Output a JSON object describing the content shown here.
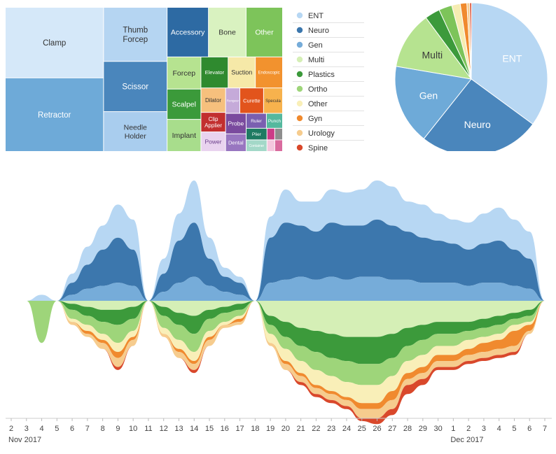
{
  "chart_data": [
    {
      "type": "treemap",
      "items": [
        {
          "name": "Clamp",
          "color": "#d5e8f9",
          "text_color": "#333333",
          "value": 11.5
        },
        {
          "name": "Retractor",
          "color": "#6eaad8",
          "text_color": "#ffffff",
          "value": 12
        },
        {
          "name": "Thumb\nForcep",
          "color": "#b5d5f2",
          "text_color": "#333333",
          "value": 5.7
        },
        {
          "name": "Scissor",
          "color": "#4a86bc",
          "text_color": "#ffffff",
          "value": 5.3
        },
        {
          "name": "Needle\nHolder",
          "color": "#a9cdee",
          "text_color": "#333333",
          "value": 4.2
        },
        {
          "name": "Accessory",
          "color": "#2d6aa3",
          "text_color": "#ffffff",
          "value": 3.4
        },
        {
          "name": "Bone",
          "color": "#d9f2c0",
          "text_color": "#333333",
          "value": 3.1
        },
        {
          "name": "Other",
          "color": "#7dc45a",
          "text_color": "#ffffff",
          "value": 3.0
        },
        {
          "name": "Forcep",
          "color": "#b6e390",
          "text_color": "#333333",
          "value": 1.8
        },
        {
          "name": "Scalpel",
          "color": "#3b9a3a",
          "text_color": "#ffffff",
          "value": 1.7
        },
        {
          "name": "Implant",
          "color": "#a8dd8c",
          "text_color": "#333333",
          "value": 1.8
        },
        {
          "name": "Elevator",
          "color": "#2f8a2f",
          "text_color": "#ffffff",
          "value": 1.4
        },
        {
          "name": "Suction",
          "color": "#f6e9a8",
          "text_color": "#333333",
          "value": 1.4
        },
        {
          "name": "Endoscopic",
          "color": "#f2922e",
          "text_color": "#ffffff",
          "value": 1.4
        },
        {
          "name": "Dilator",
          "color": "#f6c07d",
          "text_color": "#333333",
          "value": 1.0
        },
        {
          "name": "Clip\nApplier",
          "color": "#c22f2f",
          "text_color": "#ffffff",
          "value": 0.8
        },
        {
          "name": "Power",
          "color": "#e9d3ef",
          "text_color": "#6a3e8a",
          "value": 0.8
        },
        {
          "name": "Rongeur",
          "color": "#c5aad9",
          "text_color": "#ffffff",
          "value": 0.6
        },
        {
          "name": "Curette",
          "color": "#e2541c",
          "text_color": "#ffffff",
          "value": 1.0
        },
        {
          "name": "Specula",
          "color": "#f7b24d",
          "text_color": "#333333",
          "value": 0.8
        },
        {
          "name": "Probe",
          "color": "#7a4a9e",
          "text_color": "#ffffff",
          "value": 0.7
        },
        {
          "name": "Dental",
          "color": "#9876c0",
          "text_color": "#ffffff",
          "value": 0.6
        },
        {
          "name": "Ruler",
          "color": "#7a5fb0",
          "text_color": "#ffffff",
          "value": 0.5
        },
        {
          "name": "Punch",
          "color": "#55b89e",
          "text_color": "#ffffff",
          "value": 0.4
        },
        {
          "name": "Plier",
          "color": "#1f7a62",
          "text_color": "#ffffff",
          "value": 0.4
        },
        {
          "name": "Container",
          "color": "#a3d8c8",
          "text_color": "#ffffff",
          "value": 0.4
        },
        {
          "name": "",
          "color": "#cc3c87",
          "value": 0.15
        },
        {
          "name": "",
          "color": "#8e8e8e",
          "value": 0.15
        },
        {
          "name": "",
          "color": "#f4c7de",
          "value": 0.15
        },
        {
          "name": "",
          "color": "#d96b9e",
          "value": 0.15
        }
      ]
    },
    {
      "type": "pie",
      "labels": [
        "ENT",
        "Neuro",
        "Gen",
        "Multi",
        "Plastics",
        "Ortho",
        "Other",
        "Gyn",
        "Urology",
        "Spine"
      ],
      "values": [
        35.0,
        25.6,
        17.0,
        12.2,
        3.2,
        2.8,
        1.8,
        1.4,
        0.6,
        0.4
      ],
      "shown_labels": [
        "ENT",
        "Neuro",
        "Gen",
        "Multi"
      ]
    },
    {
      "type": "area",
      "stacked": true,
      "layout": "streamgraph",
      "x_tick_labels": [
        "2",
        "3",
        "4",
        "5",
        "6",
        "7",
        "8",
        "9",
        "10",
        "11",
        "12",
        "13",
        "14",
        "15",
        "16",
        "17",
        "18",
        "19",
        "20",
        "21",
        "22",
        "23",
        "24",
        "25",
        "26",
        "27",
        "28",
        "29",
        "30",
        "1",
        "2",
        "3",
        "4",
        "5",
        "6",
        "7"
      ],
      "x_sub_labels": [
        {
          "index": 0,
          "text": "Nov 2017"
        },
        {
          "index": 29,
          "text": "Dec 2017"
        }
      ],
      "legend": {
        "placement": "right-of-treemap"
      },
      "series": [
        {
          "name": "ENT",
          "color": "#b7d7f3",
          "values": [
            0,
            0,
            2,
            0,
            3,
            6,
            8,
            11,
            10,
            0,
            5,
            9,
            14,
            7,
            3,
            2,
            0,
            7,
            11,
            8,
            10,
            11,
            11,
            12,
            13,
            13,
            10,
            11,
            9,
            8,
            9,
            10,
            11,
            10,
            9,
            0
          ]
        },
        {
          "name": "Neuro",
          "color": "#3c77ad",
          "values": [
            0,
            0,
            0,
            0,
            4,
            8,
            12,
            15,
            12,
            0,
            6,
            14,
            18,
            9,
            5,
            4,
            0,
            15,
            19,
            17,
            16,
            18,
            18,
            17,
            19,
            18,
            16,
            15,
            14,
            13,
            12,
            13,
            14,
            12,
            10,
            0
          ]
        },
        {
          "name": "Gen",
          "color": "#76acd9",
          "values": [
            0,
            0,
            0,
            0,
            2,
            4,
            5,
            6,
            5,
            0,
            3,
            6,
            8,
            5,
            3,
            2,
            0,
            6,
            7,
            8,
            7,
            8,
            7,
            8,
            8,
            7,
            7,
            6,
            6,
            6,
            5,
            6,
            6,
            5,
            4,
            0
          ]
        },
        {
          "name": "Multi",
          "color": "#d5efb6",
          "values": [
            0,
            0,
            0,
            0,
            1,
            2,
            3,
            3,
            2,
            0,
            2,
            4,
            5,
            3,
            2,
            1,
            0,
            5,
            7,
            9,
            10,
            11,
            12,
            12,
            12,
            11,
            9,
            8,
            7,
            7,
            7,
            6,
            5,
            4,
            3,
            0
          ]
        },
        {
          "name": "Plastics",
          "color": "#3c9a3b",
          "values": [
            0,
            0,
            0,
            0,
            2,
            3,
            4,
            5,
            4,
            0,
            3,
            4,
            6,
            3,
            2,
            2,
            0,
            3,
            5,
            6,
            7,
            8,
            8,
            9,
            9,
            8,
            6,
            5,
            4,
            4,
            3,
            3,
            3,
            2,
            2,
            0
          ]
        },
        {
          "name": "Ortho",
          "color": "#9ed57a",
          "values": [
            0,
            0,
            14,
            0,
            3,
            3,
            4,
            6,
            4,
            0,
            4,
            5,
            6,
            4,
            3,
            2,
            0,
            3,
            4,
            5,
            6,
            6,
            7,
            7,
            7,
            6,
            5,
            5,
            4,
            4,
            3,
            3,
            3,
            2,
            2,
            0
          ]
        },
        {
          "name": "Other",
          "color": "#f9efb8",
          "values": [
            0,
            0,
            0,
            0,
            1,
            2,
            2,
            3,
            2,
            0,
            2,
            3,
            3,
            2,
            1,
            1,
            0,
            3,
            4,
            4,
            5,
            5,
            5,
            6,
            6,
            5,
            4,
            4,
            3,
            3,
            3,
            2,
            2,
            2,
            1,
            0
          ]
        },
        {
          "name": "Gyn",
          "color": "#f08a2e",
          "values": [
            0,
            0,
            0,
            0,
            0,
            1,
            1,
            2,
            1,
            0,
            0,
            1,
            1,
            1,
            0,
            1,
            0,
            0,
            1,
            1,
            1,
            1,
            1,
            2,
            2,
            3,
            2,
            2,
            2,
            2,
            2,
            3,
            3,
            5,
            2,
            0
          ]
        },
        {
          "name": "Urology",
          "color": "#f6cc8e",
          "values": [
            0,
            0,
            0,
            0,
            1,
            1,
            2,
            3,
            2,
            0,
            1,
            2,
            2,
            2,
            1,
            1,
            0,
            1,
            2,
            2,
            2,
            2,
            2,
            3,
            3,
            3,
            2,
            2,
            2,
            2,
            2,
            2,
            2,
            2,
            1,
            0
          ]
        },
        {
          "name": "Spine",
          "color": "#d9482b",
          "values": [
            0,
            0,
            0,
            0,
            0,
            0,
            0,
            1,
            0,
            0,
            0,
            0,
            1,
            0,
            0,
            0,
            0,
            0,
            0,
            1,
            1,
            1,
            1,
            1,
            2,
            2,
            3,
            2,
            1,
            1,
            1,
            1,
            1,
            1,
            0,
            0
          ]
        }
      ]
    }
  ]
}
